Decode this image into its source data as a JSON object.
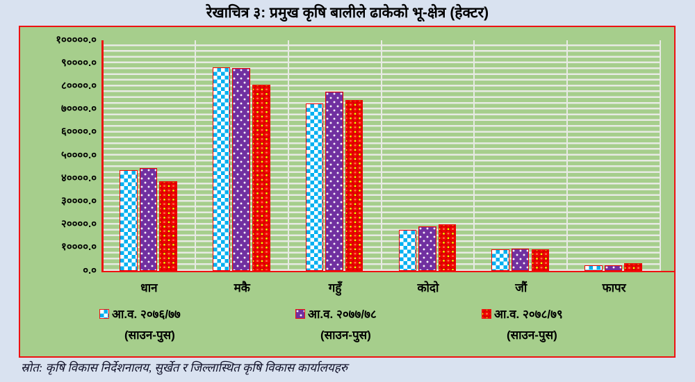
{
  "title": "रेखाचित्र ३:  प्रमुख कृषि बालीले ढाकेको भू-क्षेत्र (हेक्टर)",
  "source": "स्रोत: कृषि विकास निर्देशनालय, सुर्खेत र जिल्लास्थित कृषि विकास कार्यालयहरु",
  "colors": {
    "page_bg": "#d9e2f0",
    "chart_bg": "#a6ce8c",
    "chart_border": "#ee1111",
    "gridline": "#e7eae3",
    "series1_blue": "#00b0f0",
    "series2_purple": "#7030a0",
    "series3_red": "#f00000",
    "series3_yellow": "#ffff00"
  },
  "chart_data": {
    "type": "bar",
    "title": "रेखाचित्र ३:  प्रमुख कृषि बालीले ढाकेको भू-क्षेत्र (हेक्टर)",
    "unit": "हेक्टर",
    "categories": [
      "धान",
      "मकै",
      "गहुँ",
      "कोदो",
      "जौं",
      "फापर"
    ],
    "series": [
      {
        "name": "आ.व. २०७६/७७ (साउन-पुस)",
        "pattern": "blue-white-checker",
        "values": [
          43500,
          88000,
          72300,
          17500,
          9200,
          2400
        ]
      },
      {
        "name": "आ.व. २०७७/७८ (साउन-पुस)",
        "pattern": "purple-white-dots",
        "values": [
          44300,
          87800,
          77700,
          19000,
          9500,
          2400
        ]
      },
      {
        "name": "आ.व. २०७८/७९ (साउन-पुस)",
        "pattern": "red-yellow-spheres",
        "values": [
          38800,
          80500,
          74000,
          19900,
          9300,
          3300
        ]
      }
    ],
    "ylim": [
      0,
      100000
    ],
    "y_tick_step": 10000,
    "y_minor_step": 2500,
    "y_ticks_top_to_bottom": [
      "१०००००.०",
      "९००००.०",
      "८००००.०",
      "७००००.०",
      "६००००.०",
      "५००००.०",
      "४००००.०",
      "३००००.०",
      "२००००.०",
      "१००००.०",
      "०.०"
    ],
    "grid": "horizontal-minor-stripes and category-boundary verticals",
    "legend_position": "bottom",
    "legend": [
      {
        "line1": "आ.व. २०७६/७७",
        "line2": "(साउन-पुस)"
      },
      {
        "line1": "आ.व. २०७७/७८",
        "line2": "(साउन-पुस)"
      },
      {
        "line1": "आ.व. २०७८/७९",
        "line2": "(साउन-पुस)"
      }
    ]
  }
}
